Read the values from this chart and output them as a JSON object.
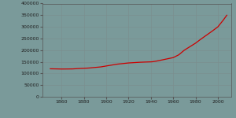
{
  "years": [
    1850,
    1856,
    1860,
    1865,
    1870,
    1875,
    1880,
    1885,
    1888,
    1895,
    1900,
    1905,
    1910,
    1915,
    1920,
    1925,
    1930,
    1935,
    1941,
    1945,
    1950,
    1955,
    1960,
    1965,
    1970,
    1975,
    1980,
    1985,
    1990,
    1995,
    2000,
    2005,
    2008
  ],
  "population": [
    120000,
    119500,
    119000,
    119200,
    119500,
    121000,
    122000,
    123500,
    125000,
    128000,
    132000,
    136000,
    140000,
    142500,
    145000,
    146500,
    148000,
    149000,
    150000,
    153000,
    158000,
    163000,
    168000,
    180000,
    200000,
    215000,
    230000,
    248000,
    265000,
    282000,
    300000,
    330000,
    350000
  ],
  "line_color": "#cc0000",
  "bg_color": "#7a9a9a",
  "ylim": [
    0,
    400000
  ],
  "xlim": [
    1843,
    2012
  ],
  "yticks": [
    0,
    50000,
    100000,
    150000,
    200000,
    250000,
    300000,
    350000,
    400000
  ],
  "xticks": [
    1860,
    1880,
    1900,
    1920,
    1940,
    1960,
    1980,
    2000
  ],
  "tick_labelsize": 4.5,
  "linewidth": 0.9
}
